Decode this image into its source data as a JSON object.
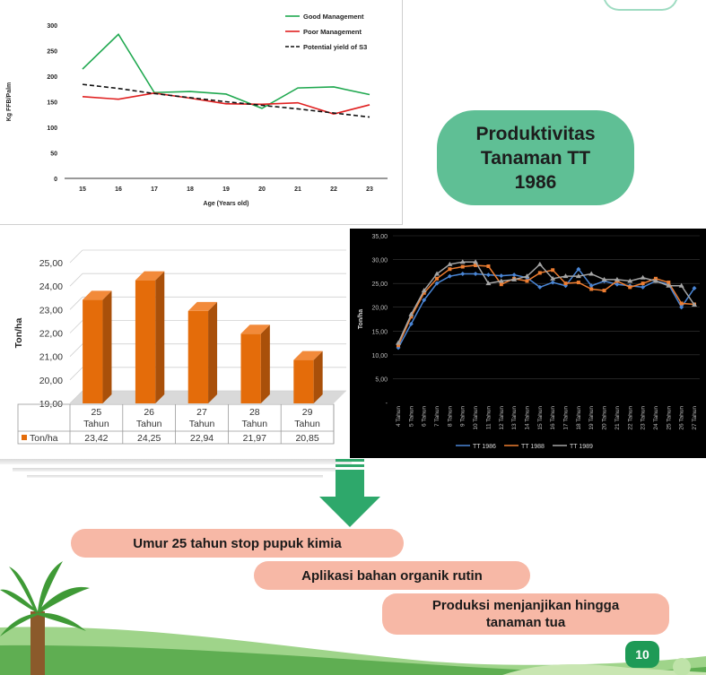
{
  "slide": {
    "page_number": "10",
    "title_bubble": [
      "Produktivitas",
      "Tanaman TT",
      "1986"
    ],
    "pills": [
      "Umur 25 tahun stop pupuk kimia",
      "Aplikasi bahan organik rutin",
      "Produksi menjanjikan hingga tanaman tua"
    ],
    "colors": {
      "green_accent": "#2ea86b",
      "bubble": "#5fbf95",
      "pill": "#f7b8a6",
      "orange_bar": "#e46c0a"
    }
  },
  "chart_data": [
    {
      "type": "line",
      "x": [
        15,
        16,
        17,
        18,
        19,
        20,
        21,
        22,
        23
      ],
      "series": [
        {
          "name": "Good Management",
          "values": [
            214,
            282,
            168,
            170,
            165,
            137,
            177,
            179,
            164
          ],
          "color": "#1fa84f"
        },
        {
          "name": "Poor Management",
          "values": [
            160,
            155,
            167,
            157,
            146,
            145,
            148,
            126,
            144
          ],
          "color": "#e02020"
        },
        {
          "name": "Potential yield of S3",
          "values": [
            184,
            176,
            166,
            158,
            150,
            143,
            136,
            128,
            120
          ],
          "color": "#111111",
          "dashed": true
        }
      ],
      "xlabel": "Age (Years old)",
      "ylabel": "Kg FFB/Palm",
      "ylim": [
        0,
        300
      ],
      "yticks": [
        0,
        50,
        100,
        150,
        200,
        250,
        300
      ],
      "legend": "top-right"
    },
    {
      "type": "bar",
      "categories": [
        [
          "25",
          "Tahun"
        ],
        [
          "26",
          "Tahun"
        ],
        [
          "27",
          "Tahun"
        ],
        [
          "28",
          "Tahun"
        ],
        [
          "29",
          "Tahun"
        ]
      ],
      "values": [
        23.42,
        24.25,
        22.94,
        21.97,
        20.85
      ],
      "value_labels": [
        "23,42",
        "24,25",
        "22,94",
        "21,97",
        "20,85"
      ],
      "series_name": "Ton/ha",
      "ylabel": "Ton/ha",
      "ylim": [
        19,
        25
      ],
      "yticks": [
        "19,00",
        "20,00",
        "21,00",
        "22,00",
        "23,00",
        "24,00",
        "25,00"
      ],
      "data_table": true
    },
    {
      "type": "line",
      "categories": [
        "4 Tahun",
        "5 Tahun",
        "6 Tahun",
        "7 Tahun",
        "8 Tahun",
        "9 Tahun",
        "10 Tahun",
        "11 Tahun",
        "12 Tahun",
        "13 Tahun",
        "14 Tahun",
        "15 Tahun",
        "16 Tahun",
        "17 Tahun",
        "18 Tahun",
        "19 Tahun",
        "20 Tahun",
        "21 Tahun",
        "22 Tahun",
        "23 Tahun",
        "24 Tahun",
        "25 Tahun",
        "26 Tahun",
        "27 Tahun"
      ],
      "series": [
        {
          "name": "TT 1986",
          "values": [
            11.5,
            16.5,
            21.5,
            25,
            26.5,
            27,
            27,
            26.8,
            26.6,
            26.8,
            26.2,
            24.2,
            25.2,
            24.5,
            28,
            24.5,
            25.5,
            24.8,
            24.5,
            24.2,
            25.5,
            24.8,
            20,
            24
          ],
          "color": "#4a86d6"
        },
        {
          "name": "TT 1988",
          "values": [
            12,
            18,
            23,
            26,
            28,
            28.5,
            28.8,
            28.6,
            24.8,
            26,
            25.5,
            27.2,
            27.8,
            25,
            25.2,
            23.8,
            23.5,
            25.5,
            24.2,
            25,
            26,
            25.2,
            20.8,
            20.6
          ],
          "color": "#ed7d31"
        },
        {
          "name": "TT 1989",
          "values": [
            12.5,
            18.5,
            23.5,
            27,
            29,
            29.5,
            29.5,
            25,
            25.5,
            25.8,
            26.5,
            29,
            26,
            26.5,
            26.5,
            27,
            25.8,
            25.8,
            25.5,
            26.2,
            25.5,
            24.5,
            24.5,
            20.5
          ],
          "color": "#a5a5a5"
        }
      ],
      "ylabel": "Ton/ha",
      "ylim": [
        0,
        35
      ],
      "yticks": [
        "-",
        "5,00",
        "10,00",
        "15,00",
        "20,00",
        "25,00",
        "30,00",
        "35,00"
      ],
      "legend": "bottom",
      "background": "#000000"
    }
  ]
}
